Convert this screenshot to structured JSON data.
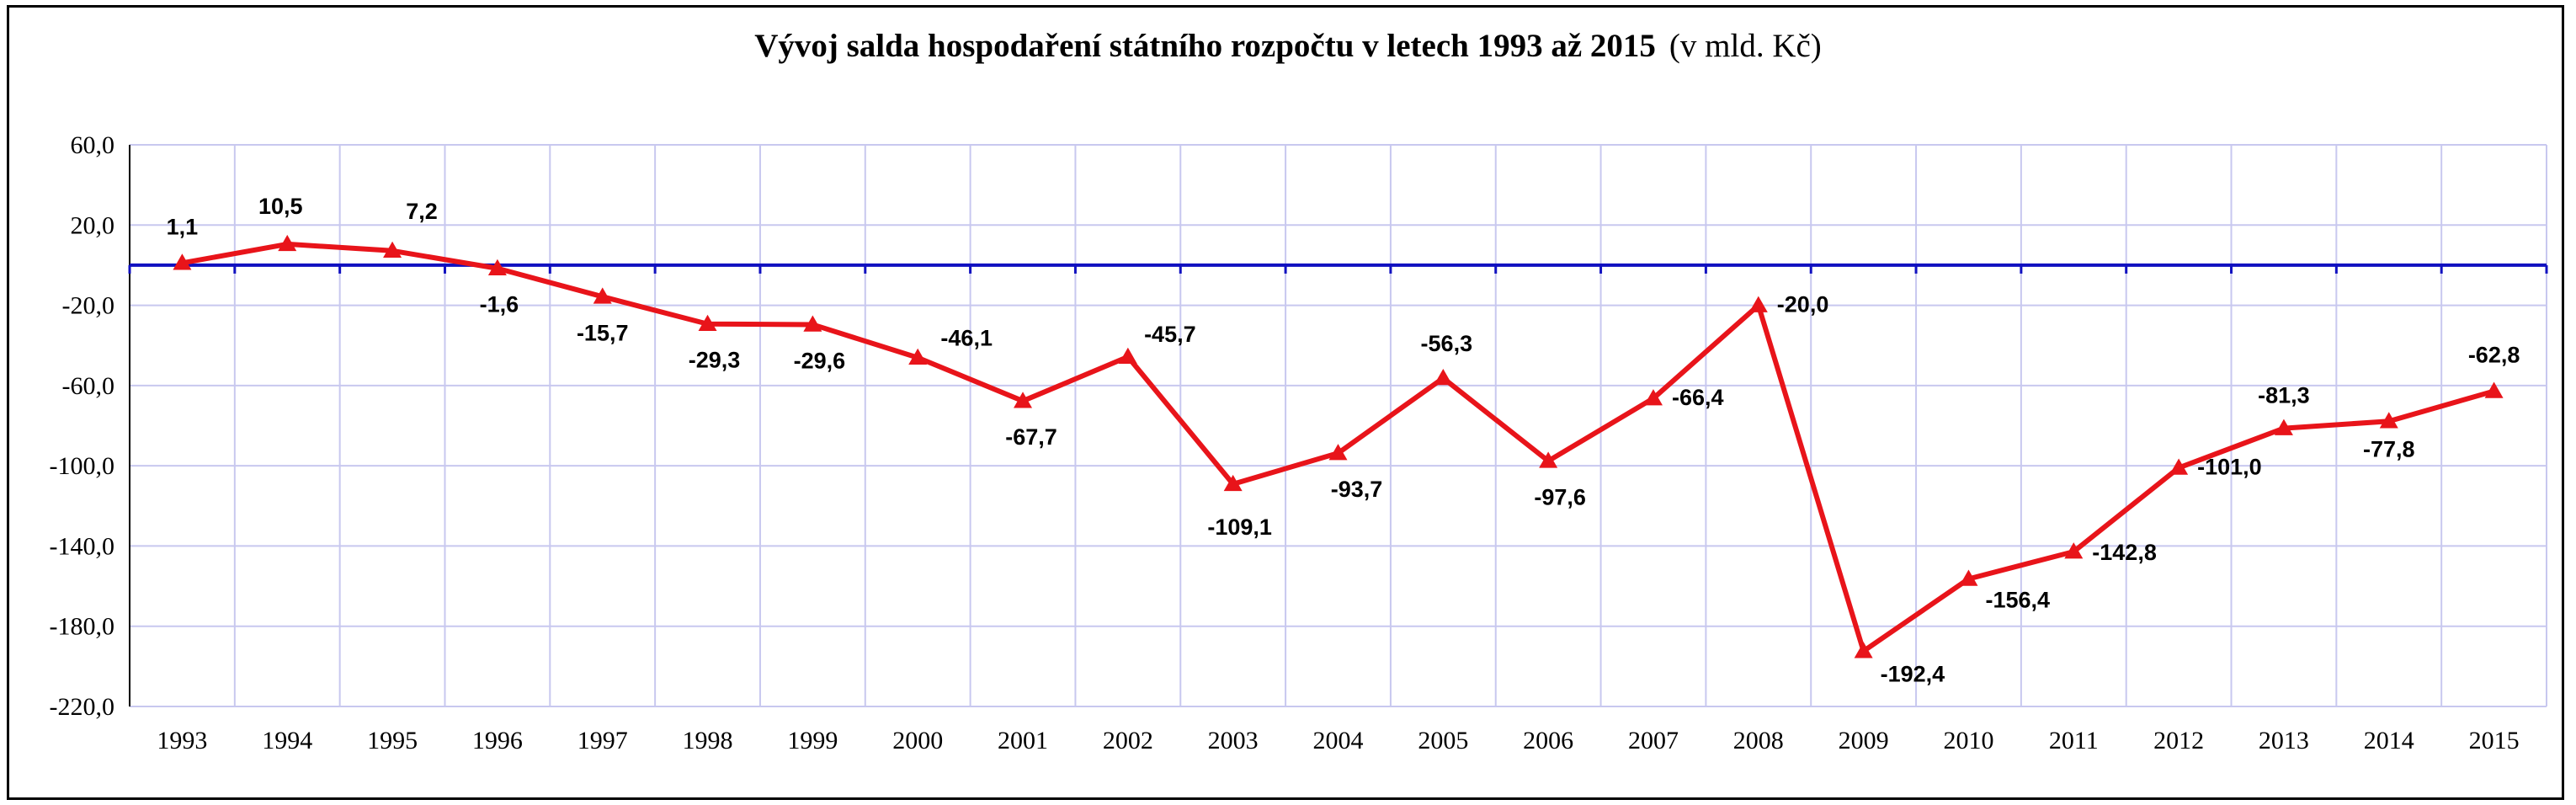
{
  "chart_data": {
    "type": "line",
    "title": "Vývoj salda hospodaření státního rozpočtu v letech 1993 až 2015",
    "subtitle": "(v mld. Kč)",
    "xlabel": "",
    "ylabel": "",
    "categories": [
      "1993",
      "1994",
      "1995",
      "1996",
      "1997",
      "1998",
      "1999",
      "2000",
      "2001",
      "2002",
      "2003",
      "2004",
      "2005",
      "2006",
      "2007",
      "2008",
      "2009",
      "2010",
      "2011",
      "2012",
      "2013",
      "2014",
      "2015"
    ],
    "series": [
      {
        "values": [
          1.1,
          10.5,
          7.2,
          -1.6,
          -15.7,
          -29.3,
          -29.6,
          -46.1,
          -67.7,
          -45.7,
          -109.1,
          -93.7,
          -56.3,
          -97.6,
          -66.4,
          -20.0,
          -192.4,
          -156.4,
          -142.8,
          -101.0,
          -81.3,
          -77.8,
          -62.8
        ],
        "labels": [
          "1,1",
          "10,5",
          "7,2",
          "-1,6",
          "-15,7",
          "-29,3",
          "-29,6",
          "-46,1",
          "-67,7",
          "-45,7",
          "-109,1",
          "-93,7",
          "-56,3",
          "-97,6",
          "-66,4",
          "-20,0",
          "-192,4",
          "-156,4",
          "-142,8",
          "-101,0",
          "-81,3",
          "-77,8",
          "-62,8"
        ],
        "color": "#e8141a",
        "marker": "triangle"
      }
    ],
    "ylim": [
      -220,
      60
    ],
    "yticks": [
      60,
      20,
      -20,
      -60,
      -100,
      -140,
      -180,
      -220
    ],
    "ytick_labels": [
      "60,0",
      "20,0",
      "-20,0",
      "-60,0",
      "-100,0",
      "-140,0",
      "-180,0",
      "-220,0"
    ],
    "grid": true,
    "gridColor": "#c8c8ef",
    "zeroLineColor": "#1010c0",
    "legend": "none"
  }
}
